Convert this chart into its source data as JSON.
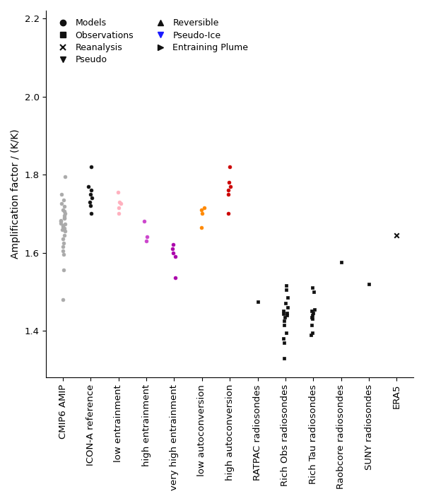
{
  "ylabel": "Amplification factor / (K/K)",
  "categories": [
    "CMIP6 AMIP",
    "ICON-A reference",
    "low entrainment",
    "high entrainment",
    "very high entrainment",
    "low autoconversion",
    "high autoconversion",
    "RATPAC radiosondes",
    "Rich Obs radiosondes",
    "Rich Tau radiosondes",
    "Raobcore radiosondes",
    "SUNY radiosondes",
    "ERA5"
  ],
  "ylim": [
    1.28,
    2.22
  ],
  "yticks": [
    1.4,
    1.6,
    1.8,
    2.0,
    2.2
  ],
  "data": {
    "CMIP6 AMIP": {
      "marker": "o",
      "color": "#aaaaaa",
      "values": [
        1.48,
        1.555,
        1.595,
        1.605,
        1.615,
        1.625,
        1.635,
        1.645,
        1.655,
        1.658,
        1.662,
        1.666,
        1.67,
        1.673,
        1.676,
        1.68,
        1.683,
        1.687,
        1.69,
        1.695,
        1.7,
        1.705,
        1.71,
        1.718,
        1.725,
        1.735,
        1.75,
        1.795
      ]
    },
    "ICON-A reference": {
      "marker": "o",
      "color": "#111111",
      "values": [
        1.7,
        1.72,
        1.73,
        1.74,
        1.75,
        1.76,
        1.77,
        1.82
      ]
    },
    "low entrainment": {
      "marker": "o",
      "color": "#ffb0be",
      "values": [
        1.7,
        1.715,
        1.725,
        1.73,
        1.755
      ]
    },
    "high entrainment": {
      "marker": "o",
      "color": "#cc44cc",
      "values": [
        1.63,
        1.64,
        1.68
      ]
    },
    "very high entrainment": {
      "marker": "o",
      "color": "#aa00aa",
      "values": [
        1.535,
        1.59,
        1.6,
        1.61,
        1.62
      ]
    },
    "low autoconversion": {
      "marker": "o",
      "color": "#ff8800",
      "values": [
        1.665,
        1.7,
        1.71,
        1.715
      ]
    },
    "high autoconversion": {
      "marker": "o",
      "color": "#cc0000",
      "values": [
        1.7,
        1.75,
        1.76,
        1.77,
        1.78,
        1.82
      ]
    },
    "RATPAC radiosondes": {
      "marker": "s",
      "color": "#111111",
      "values": [
        1.475
      ]
    },
    "Rich Obs radiosondes": {
      "marker": "s",
      "color": "#111111",
      "values": [
        1.33,
        1.37,
        1.38,
        1.395,
        1.415,
        1.425,
        1.435,
        1.44,
        1.443,
        1.446,
        1.45,
        1.46,
        1.47,
        1.485,
        1.505,
        1.515
      ]
    },
    "Rich Tau radiosondes": {
      "marker": "s",
      "color": "#111111",
      "values": [
        1.39,
        1.395,
        1.415,
        1.43,
        1.435,
        1.44,
        1.445,
        1.45,
        1.455,
        1.5,
        1.51
      ]
    },
    "Raobcore radiosondes": {
      "marker": "s",
      "color": "#111111",
      "values": [
        1.575
      ]
    },
    "SUNY radiosondes": {
      "marker": "s",
      "color": "#111111",
      "values": [
        1.52
      ]
    },
    "ERA5": {
      "marker": "x",
      "color": "#111111",
      "values": [
        1.645
      ]
    }
  },
  "legend_items": [
    {
      "label": "Models",
      "marker": "o",
      "color": "#111111",
      "col": 0
    },
    {
      "label": "Observations",
      "marker": "s",
      "color": "#111111",
      "col": 0
    },
    {
      "label": "Reanalysis",
      "marker": "x",
      "color": "#111111",
      "col": 0
    },
    {
      "label": "Pseudo",
      "marker": "v",
      "color": "#111111",
      "col": 0
    },
    {
      "label": "Reversible",
      "marker": "^",
      "color": "#111111",
      "col": 1
    },
    {
      "label": "Pseudo-Ice",
      "marker": "v",
      "color": "#1a1aff",
      "col": 1
    },
    {
      "label": "Entraining Plume",
      "marker": ">",
      "color": "#111111",
      "col": 1
    }
  ],
  "figsize": [
    6.0,
    7.09
  ],
  "dpi": 100
}
